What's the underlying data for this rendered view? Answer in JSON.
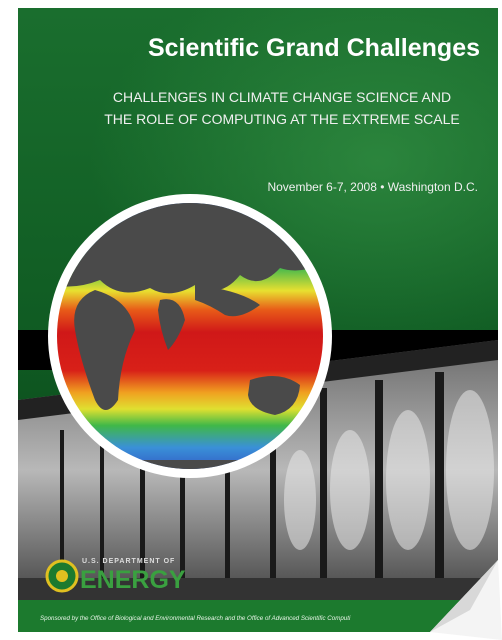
{
  "cover": {
    "title": "Scientific Grand Challenges",
    "subtitle_lines": [
      "CHALLENGES IN CLIMATE CHANGE SCIENCE AND",
      "THE ROLE OF COMPUTING AT THE EXTREME SCALE"
    ],
    "event": "November 6-7, 2008 • Washington D.C.",
    "logo": {
      "top": "U.S. DEPARTMENT OF",
      "name": "ENERGY"
    },
    "footer": "Sponsored by the Office of Biological and Environmental Research and the Office of Advanced Scientific Computi"
  }
}
